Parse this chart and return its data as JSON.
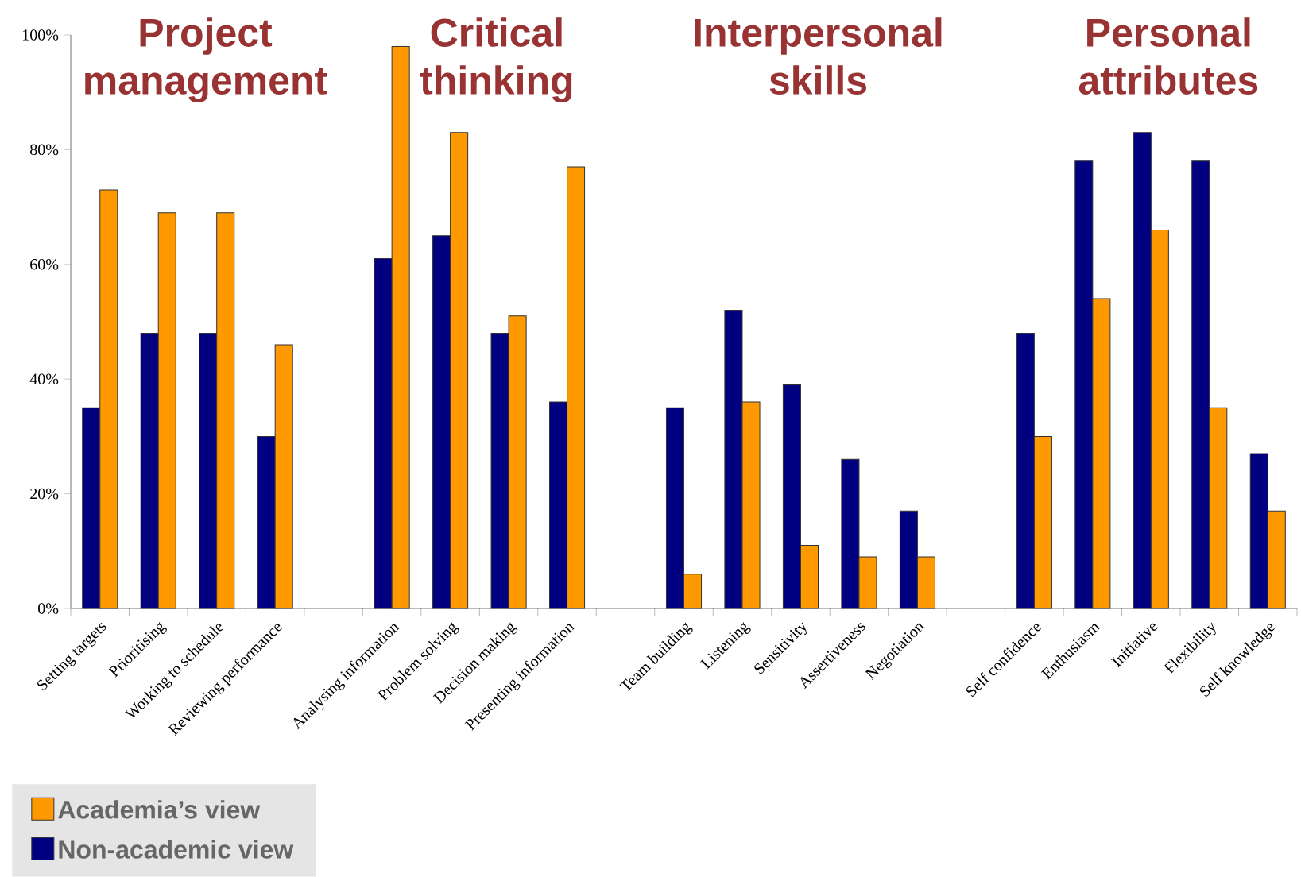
{
  "chart_data": {
    "type": "bar",
    "categories": [
      "Setting targets",
      "Prioritising",
      "Working to schedule",
      "Reviewing performance",
      null,
      "Analysing information",
      "Problem solving",
      "Decision making",
      "Presenting information",
      null,
      "Team building",
      "Listening",
      "Sensitivity",
      "Assertiveness",
      "Negotiation",
      null,
      "Self confidence",
      "Enthusiasm",
      "Initiative",
      "Flexibility",
      "Self knowledge"
    ],
    "series": [
      {
        "name": "Non-academic view",
        "color": "#000080",
        "values": [
          35,
          48,
          48,
          30,
          null,
          61,
          65,
          48,
          36,
          null,
          35,
          52,
          39,
          26,
          17,
          null,
          48,
          78,
          83,
          78,
          27
        ]
      },
      {
        "name": "Academia’s view",
        "color": "#ff9900",
        "values": [
          73,
          69,
          69,
          46,
          null,
          98,
          83,
          51,
          77,
          null,
          6,
          36,
          11,
          9,
          9,
          null,
          30,
          54,
          66,
          35,
          17
        ]
      }
    ],
    "annotations": [
      "Project management",
      "Critical thinking",
      "Interpersonal skills",
      "Personal attributes"
    ],
    "ylim": [
      0,
      100
    ],
    "yticks": [
      {
        "value": 0,
        "label": "0%"
      },
      {
        "value": 20,
        "label": "20%"
      },
      {
        "value": 40,
        "label": "40%"
      },
      {
        "value": 60,
        "label": "60%"
      },
      {
        "value": 80,
        "label": "80%"
      },
      {
        "value": 100,
        "label": "100%"
      }
    ],
    "grid": false,
    "legend": "bottom left"
  }
}
